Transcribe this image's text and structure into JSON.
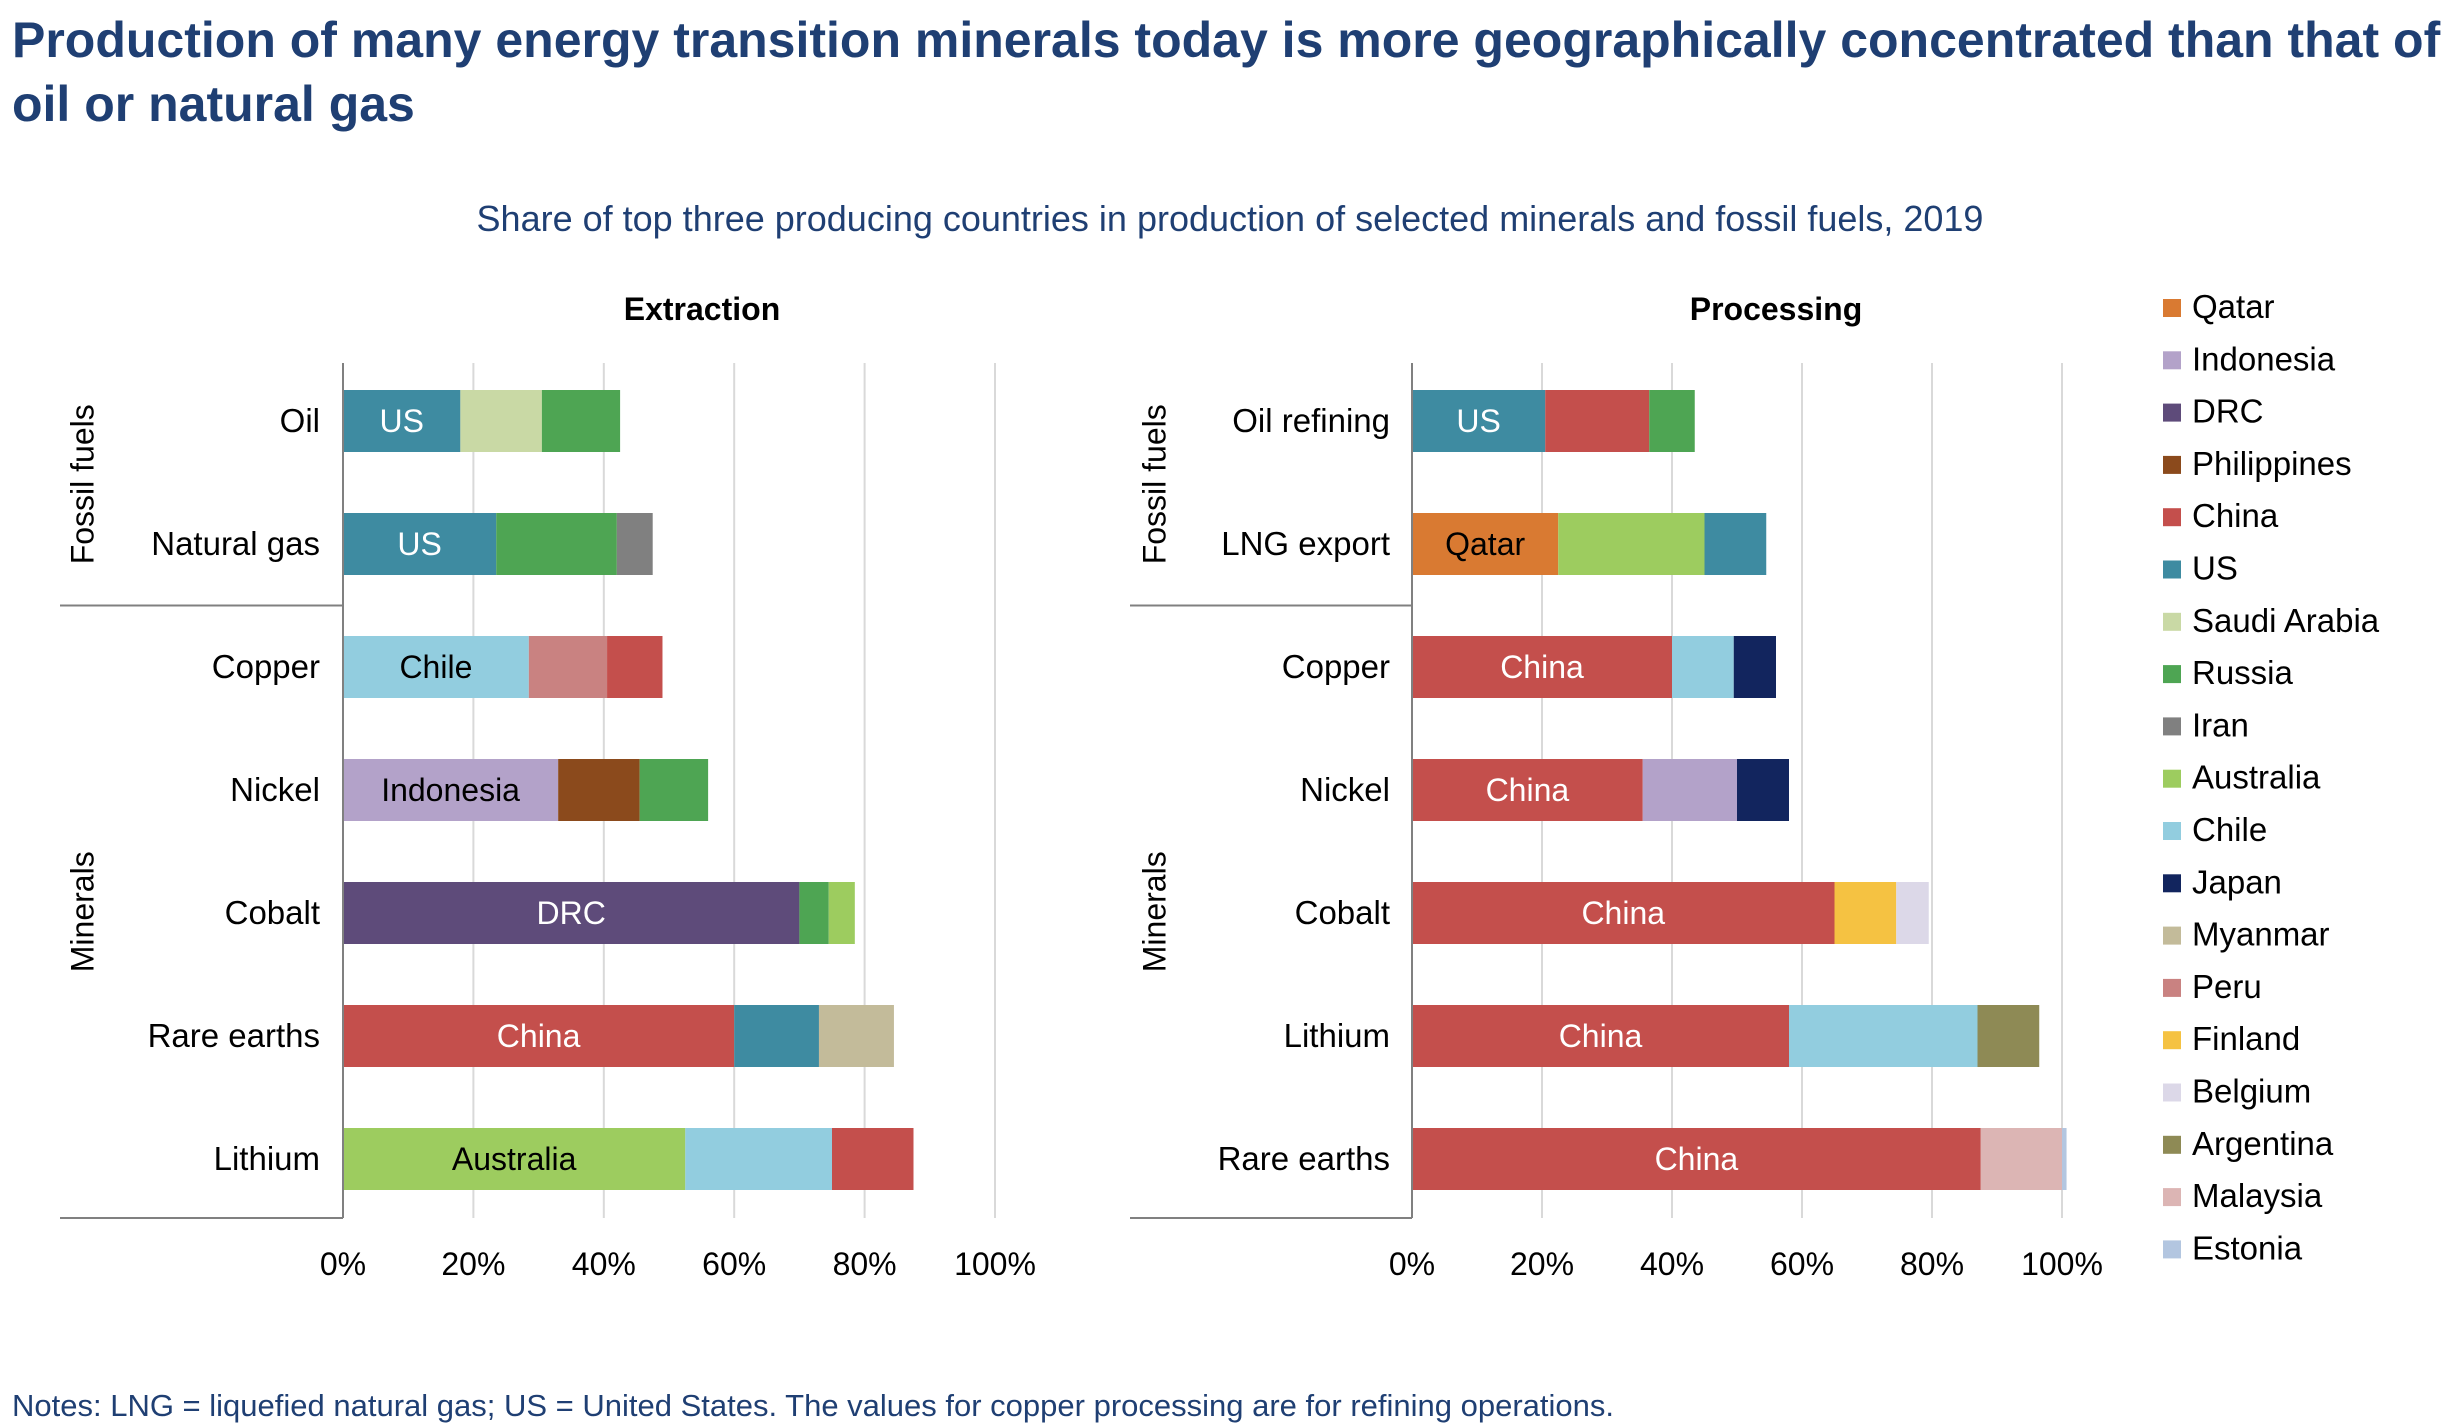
{
  "title": "Production of many energy transition minerals today is more geographically concentrated than that of oil or natural gas",
  "subtitle": "Share of top three producing countries in production of selected minerals and fossil fuels, 2019",
  "notes": "Notes: LNG = liquefied natural gas; US = United States. The values for copper processing are for refining operations.",
  "colors": {
    "Qatar": "#d97a32",
    "Indonesia": "#b3a2c9",
    "DRC": "#5e4b7a",
    "Philippines": "#8b4a1c",
    "China": "#c44f4c",
    "US": "#3e8ba1",
    "Saudi Arabia": "#c9d9a5",
    "Russia": "#4ea553",
    "Iran": "#808080",
    "Australia": "#9dcc5f",
    "Chile": "#92cddf",
    "Japan": "#12255e",
    "Myanmar": "#c3bb9a",
    "Peru": "#c98281",
    "Finland": "#f5c242",
    "Belgium": "#dcd8e8",
    "Argentina": "#8e8a55",
    "Malaysia": "#dcb5b4",
    "Estonia": "#b3c6e0"
  },
  "legend": [
    "Qatar",
    "Indonesia",
    "DRC",
    "Philippines",
    "China",
    "US",
    "Saudi Arabia",
    "Russia",
    "Iran",
    "Australia",
    "Chile",
    "Japan",
    "Myanmar",
    "Peru",
    "Finland",
    "Belgium",
    "Argentina",
    "Malaysia",
    "Estonia"
  ],
  "chart_data": [
    {
      "type": "bar",
      "orientation": "horizontal",
      "stacked": true,
      "title": "Extraction",
      "xlim": [
        0,
        100
      ],
      "ticks": [
        "0%",
        "20%",
        "40%",
        "60%",
        "80%",
        "100%"
      ],
      "groups": [
        {
          "label": "Fossil fuels",
          "rows": [
            {
              "label": "Oil",
              "segments": [
                {
                  "country": "US",
                  "value": 18,
                  "label": "US",
                  "text_color": "#ffffff"
                },
                {
                  "country": "Saudi Arabia",
                  "value": 12.5
                },
                {
                  "country": "Russia",
                  "value": 12
                }
              ]
            },
            {
              "label": "Natural gas",
              "segments": [
                {
                  "country": "US",
                  "value": 23.5,
                  "label": "US",
                  "text_color": "#ffffff"
                },
                {
                  "country": "Russia",
                  "value": 18.5
                },
                {
                  "country": "Iran",
                  "value": 5.5
                }
              ]
            }
          ]
        },
        {
          "label": "Minerals",
          "rows": [
            {
              "label": "Copper",
              "segments": [
                {
                  "country": "Chile",
                  "value": 28.5,
                  "label": "Chile",
                  "text_color": "#000000"
                },
                {
                  "country": "Peru",
                  "value": 12
                },
                {
                  "country": "China",
                  "value": 8.5
                }
              ]
            },
            {
              "label": "Nickel",
              "segments": [
                {
                  "country": "Indonesia",
                  "value": 33,
                  "label": "Indonesia",
                  "text_color": "#000000"
                },
                {
                  "country": "Philippines",
                  "value": 12.5
                },
                {
                  "country": "Russia",
                  "value": 10.5
                }
              ]
            },
            {
              "label": "Cobalt",
              "segments": [
                {
                  "country": "DRC",
                  "value": 70,
                  "label": "DRC",
                  "text_color": "#ffffff"
                },
                {
                  "country": "Russia",
                  "value": 4.5
                },
                {
                  "country": "Australia",
                  "value": 4
                }
              ]
            },
            {
              "label": "Rare earths",
              "segments": [
                {
                  "country": "China",
                  "value": 60,
                  "label": "China",
                  "text_color": "#ffffff"
                },
                {
                  "country": "US",
                  "value": 13
                },
                {
                  "country": "Myanmar",
                  "value": 11.5
                }
              ]
            },
            {
              "label": "Lithium",
              "segments": [
                {
                  "country": "Australia",
                  "value": 52.5,
                  "label": "Australia",
                  "text_color": "#000000"
                },
                {
                  "country": "Chile",
                  "value": 22.5
                },
                {
                  "country": "China",
                  "value": 12.5
                }
              ]
            }
          ]
        }
      ]
    },
    {
      "type": "bar",
      "orientation": "horizontal",
      "stacked": true,
      "title": "Processing",
      "xlim": [
        0,
        100
      ],
      "ticks": [
        "0%",
        "20%",
        "40%",
        "60%",
        "80%",
        "100%"
      ],
      "groups": [
        {
          "label": "Fossil fuels",
          "rows": [
            {
              "label": "Oil refining",
              "segments": [
                {
                  "country": "US",
                  "value": 20.5,
                  "label": "US",
                  "text_color": "#ffffff"
                },
                {
                  "country": "China",
                  "value": 16
                },
                {
                  "country": "Russia",
                  "value": 7
                }
              ]
            },
            {
              "label": "LNG export",
              "segments": [
                {
                  "country": "Qatar",
                  "value": 22.5,
                  "label": "Qatar",
                  "text_color": "#000000"
                },
                {
                  "country": "Australia",
                  "value": 22.5
                },
                {
                  "country": "US",
                  "value": 9.5
                }
              ]
            }
          ]
        },
        {
          "label": "Minerals",
          "rows": [
            {
              "label": "Copper",
              "segments": [
                {
                  "country": "China",
                  "value": 40,
                  "label": "China",
                  "text_color": "#ffffff"
                },
                {
                  "country": "Chile",
                  "value": 9.5
                },
                {
                  "country": "Japan",
                  "value": 6.5
                }
              ]
            },
            {
              "label": "Nickel",
              "segments": [
                {
                  "country": "China",
                  "value": 35.5,
                  "label": "China",
                  "text_color": "#ffffff"
                },
                {
                  "country": "Indonesia",
                  "value": 14.5
                },
                {
                  "country": "Japan",
                  "value": 8
                }
              ]
            },
            {
              "label": "Cobalt",
              "segments": [
                {
                  "country": "China",
                  "value": 65,
                  "label": "China",
                  "text_color": "#ffffff"
                },
                {
                  "country": "Finland",
                  "value": 9.5
                },
                {
                  "country": "Belgium",
                  "value": 5
                }
              ]
            },
            {
              "label": "Lithium",
              "segments": [
                {
                  "country": "China",
                  "value": 58,
                  "label": "China",
                  "text_color": "#ffffff"
                },
                {
                  "country": "Chile",
                  "value": 29
                },
                {
                  "country": "Argentina",
                  "value": 9.5
                }
              ]
            },
            {
              "label": "Rare earths",
              "segments": [
                {
                  "country": "China",
                  "value": 87.5,
                  "label": "China",
                  "text_color": "#ffffff"
                },
                {
                  "country": "Malaysia",
                  "value": 12.5
                },
                {
                  "country": "Estonia",
                  "value": 0.7
                }
              ]
            }
          ]
        }
      ]
    }
  ]
}
